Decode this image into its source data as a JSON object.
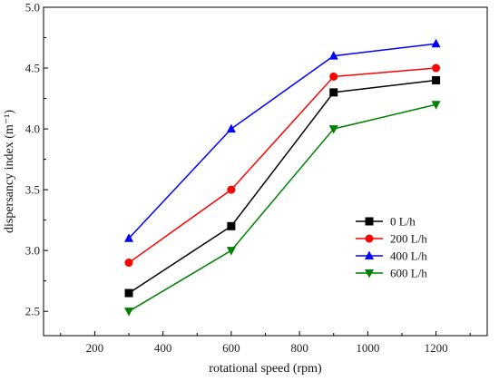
{
  "chart_data": {
    "type": "line",
    "title": "",
    "xlabel": "rotational speed (rpm)",
    "ylabel": "dispersancy index (m⁻¹)",
    "xlim": [
      50,
      1350
    ],
    "ylim": [
      2.3,
      5.0
    ],
    "x_ticks": [
      "200",
      "400",
      "600",
      "800",
      "1000",
      "1200"
    ],
    "y_ticks": [
      "2.5",
      "3.0",
      "3.5",
      "4.0",
      "4.5",
      "5.0"
    ],
    "x": [
      300,
      600,
      900,
      1200
    ],
    "series": [
      {
        "name": "0 L/h",
        "color": "#000000",
        "marker": "square",
        "values": [
          2.65,
          3.2,
          4.3,
          4.4
        ]
      },
      {
        "name": "200 L/h",
        "color": "#ff0000",
        "marker": "circle",
        "values": [
          2.9,
          3.5,
          4.43,
          4.5
        ]
      },
      {
        "name": "400 L/h",
        "color": "#0000ff",
        "marker": "triangle-up",
        "values": [
          3.1,
          4.0,
          4.6,
          4.7
        ]
      },
      {
        "name": "600 L/h",
        "color": "#008000",
        "marker": "triangle-down",
        "values": [
          2.5,
          3.0,
          4.0,
          4.2
        ]
      }
    ],
    "legend_position": "center-right",
    "grid": false
  }
}
